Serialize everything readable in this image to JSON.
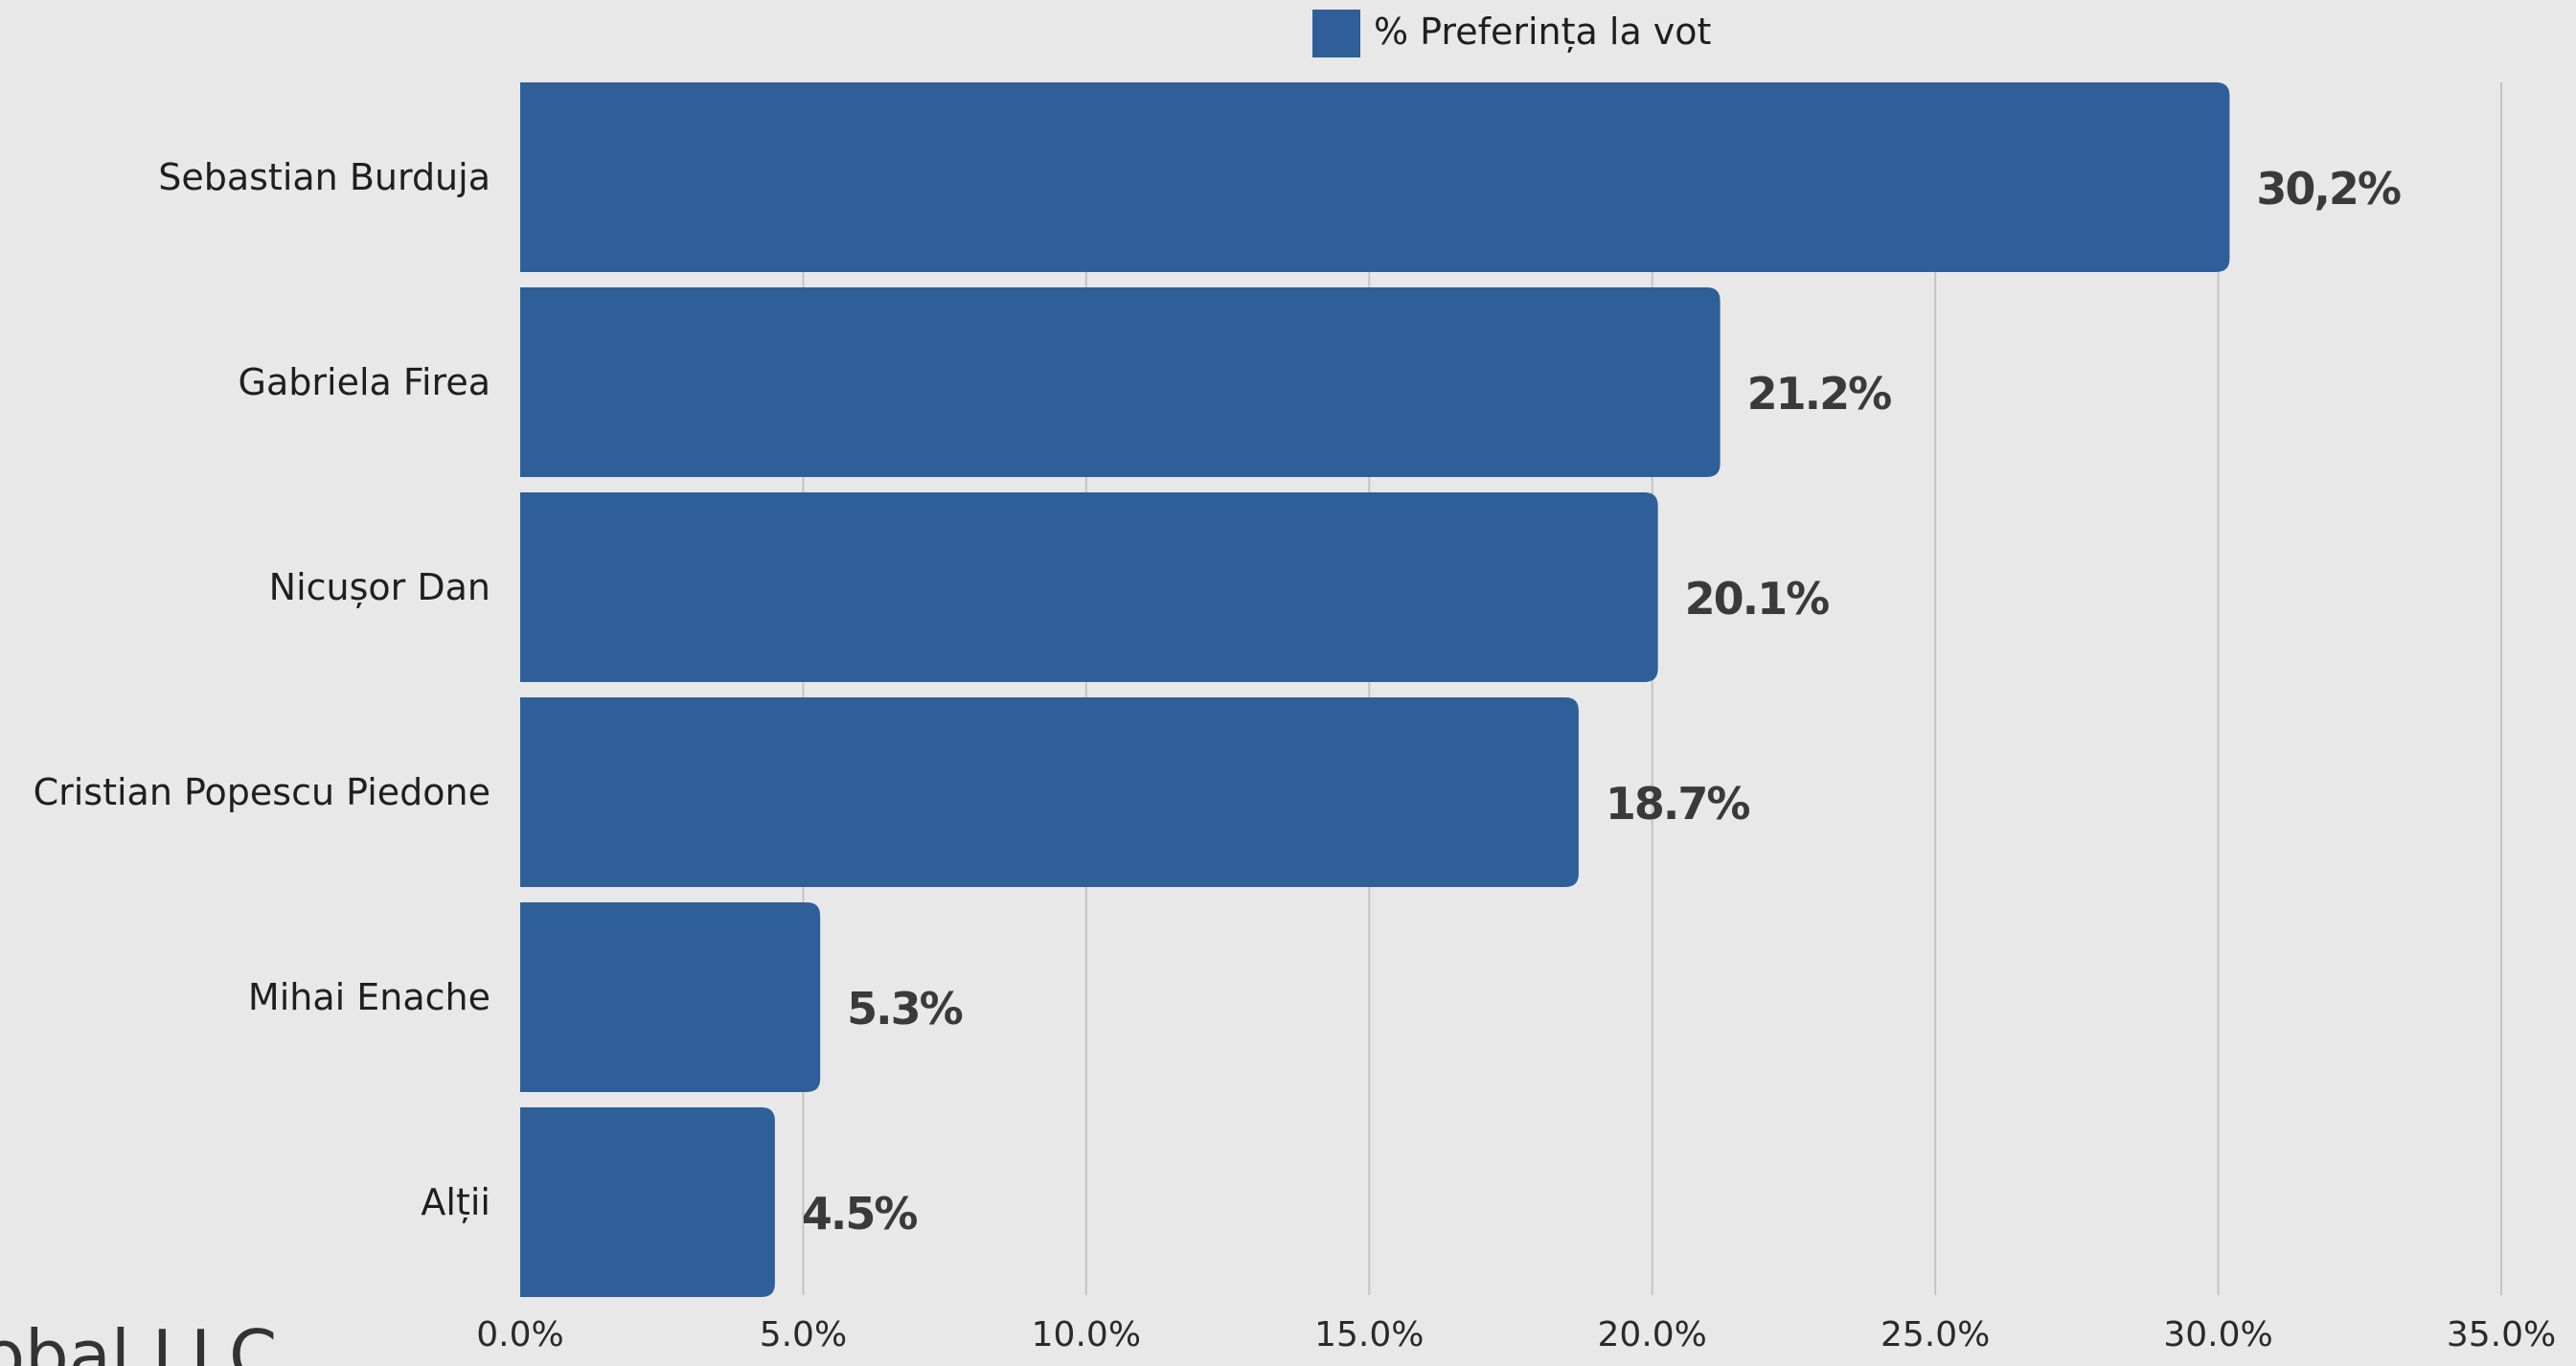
{
  "chart_data": {
    "type": "bar",
    "orientation": "horizontal",
    "categories": [
      "Sebastian Burduja",
      "Gabriela Firea",
      "Nicușor Dan",
      "Cristian Popescu Piedone",
      "Mihai Enache",
      "Alții"
    ],
    "series": [
      {
        "name": "% Preferința la vot",
        "values": [
          30.2,
          21.2,
          20.1,
          18.7,
          5.3,
          4.5
        ],
        "data_labels": [
          "30,2%",
          "21.2%",
          "20.1%",
          "18.7%",
          "5.3%",
          "4.5%"
        ]
      }
    ],
    "xlim": [
      0,
      35
    ],
    "xticks": [
      0,
      5,
      10,
      15,
      20,
      25,
      30,
      35
    ],
    "xtick_labels": [
      "0.0%",
      "5.0%",
      "10.0%",
      "15.0%",
      "20.0%",
      "25.0%",
      "30.0%",
      "35.0%"
    ],
    "grid": "vertical",
    "legend": "top-center",
    "colors": {
      "bar": "#2e5f98",
      "background": "#e8e8e8"
    }
  },
  "watermark_text": "obal LLC"
}
